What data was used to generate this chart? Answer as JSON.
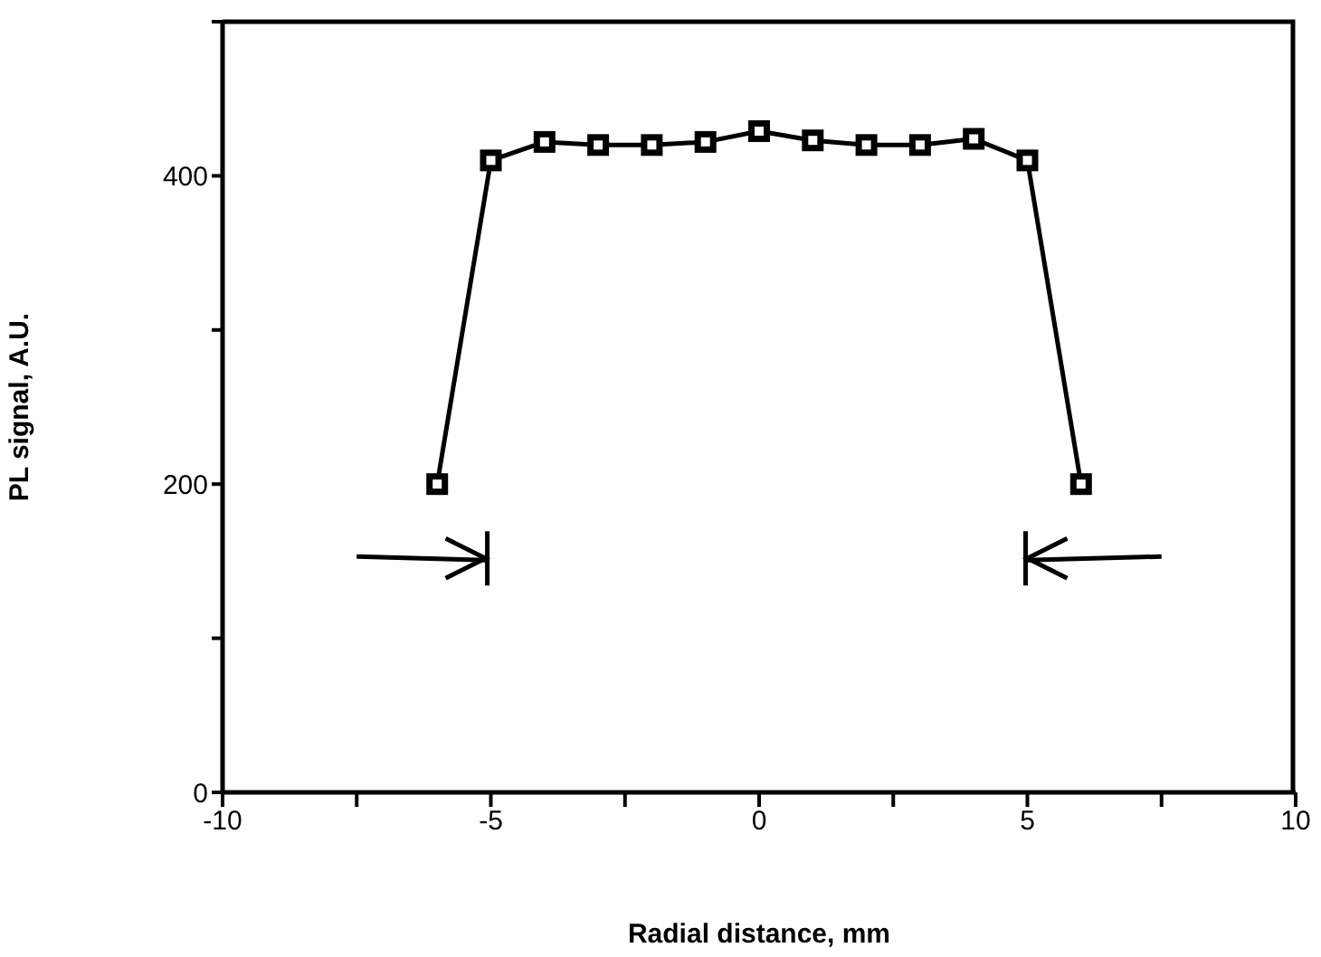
{
  "chart_data": {
    "type": "line",
    "xlabel": "Radial distance, mm",
    "ylabel": "PL signal, A.U.",
    "x": [
      -6,
      -5,
      -4,
      -3,
      -2,
      -1,
      0,
      1,
      2,
      3,
      4,
      5,
      6
    ],
    "series": [
      {
        "color": "#000000",
        "values": [
          200,
          410,
          422,
          420,
          420,
          422,
          429,
          423,
          420,
          420,
          424,
          410,
          200
        ]
      }
    ],
    "xlim": [
      -10,
      10
    ],
    "xticks": [
      -10,
      {
        "value": -7.5,
        "label": null
      },
      -5,
      {
        "value": -2.5,
        "label": null
      },
      0,
      {
        "value": 2.5,
        "label": null
      },
      5,
      {
        "value": 7.5,
        "label": null
      },
      10
    ],
    "ylim": [
      0,
      500
    ],
    "yticks": [
      0,
      {
        "value": 100,
        "label": null
      },
      200,
      {
        "value": 300,
        "label": null
      },
      400,
      {
        "value": 500,
        "label": null
      }
    ],
    "marker": "square",
    "line_style": "solid",
    "grid": false,
    "legend": false
  }
}
